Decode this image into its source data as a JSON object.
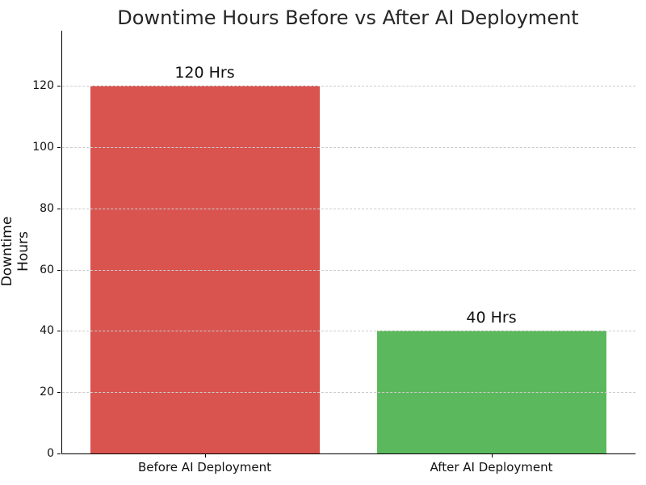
{
  "chart_data": {
    "type": "bar",
    "title": "Downtime Hours Before vs After AI Deployment",
    "xlabel": "",
    "ylabel": "Downtime Hours",
    "categories": [
      "Before AI Deployment",
      "After AI Deployment"
    ],
    "values": [
      120,
      40
    ],
    "bar_labels": [
      "120 Hrs",
      "40 Hrs"
    ],
    "bar_colors": [
      "#d9534f",
      "#5cb85c"
    ],
    "yticks": [
      0,
      20,
      40,
      60,
      80,
      100,
      120
    ],
    "ylim": [
      0,
      138
    ],
    "bar_width_fraction": 0.8,
    "grid": "horizontal-dashed",
    "grid_color": "#cccccc",
    "grid_above_bars": true,
    "title_color": "#262626",
    "text_color": "#111111",
    "background_color": "#ffffff",
    "legend": "none"
  }
}
